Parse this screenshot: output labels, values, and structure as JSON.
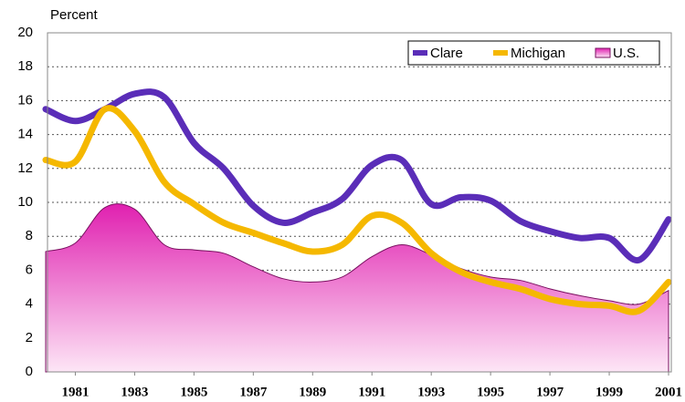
{
  "chart_data": {
    "type": "line",
    "y_label": "Percent",
    "x": [
      1980,
      1981,
      1982,
      1983,
      1984,
      1985,
      1986,
      1987,
      1988,
      1989,
      1990,
      1991,
      1992,
      1993,
      1994,
      1995,
      1996,
      1997,
      1998,
      1999,
      2000,
      2001
    ],
    "xlim": [
      1980,
      2001
    ],
    "xticks": [
      1981,
      1983,
      1985,
      1987,
      1989,
      1991,
      1993,
      1995,
      1997,
      1999,
      2001
    ],
    "ylim": [
      0,
      20
    ],
    "yticks": [
      0,
      2,
      4,
      6,
      8,
      10,
      12,
      14,
      16,
      18,
      20
    ],
    "grid": true,
    "legend": "top-right",
    "series": [
      {
        "name": "Clare",
        "color": "#5a2db8",
        "values": [
          15.5,
          14.8,
          15.5,
          16.4,
          16.2,
          13.5,
          12.0,
          9.8,
          8.8,
          9.4,
          10.2,
          12.2,
          12.5,
          9.9,
          10.3,
          10.1,
          8.9,
          8.3,
          7.9,
          7.9,
          6.6,
          9.0
        ]
      },
      {
        "name": "Michigan",
        "color": "#f5b800",
        "values": [
          12.5,
          12.4,
          15.5,
          14.2,
          11.2,
          9.9,
          8.8,
          8.2,
          7.6,
          7.1,
          7.5,
          9.2,
          8.8,
          7.0,
          5.9,
          5.3,
          4.9,
          4.3,
          4.0,
          3.9,
          3.6,
          5.3
        ]
      },
      {
        "name": "U.S.",
        "color": "#e020b0",
        "area": true,
        "values": [
          7.1,
          7.6,
          9.7,
          9.6,
          7.5,
          7.2,
          7.0,
          6.2,
          5.5,
          5.3,
          5.6,
          6.8,
          7.5,
          6.9,
          6.1,
          5.6,
          5.4,
          4.9,
          4.5,
          4.2,
          4.0,
          4.8
        ]
      }
    ]
  }
}
